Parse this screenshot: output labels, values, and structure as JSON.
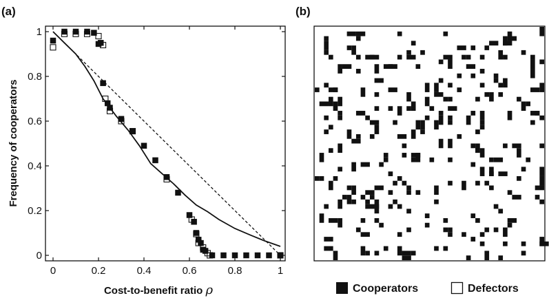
{
  "panel_a_label": "(a)",
  "panel_b_label": "(b)",
  "legend": {
    "cooperators": "Cooperators",
    "defectors": "Defectors"
  },
  "colors": {
    "ink": "#111111",
    "background": "#ffffff"
  },
  "chart_data": {
    "type": "scatter",
    "title": "",
    "xlabel": "Cost-to-benefit ratio",
    "xlabel_symbol": "ρ",
    "ylabel": "Frequency of cooperators",
    "xlim": [
      0,
      1
    ],
    "ylim": [
      0,
      1
    ],
    "xticks": [
      0,
      0.2,
      0.4,
      0.6,
      0.8,
      1
    ],
    "xtick_labels": [
      "0",
      "0.2",
      "0.4",
      "0.6",
      "0.8",
      "1"
    ],
    "yticks": [
      0,
      0.2,
      0.4,
      0.6,
      0.8,
      1
    ],
    "ytick_labels": [
      "0",
      "0.2",
      "0.4",
      "0.6",
      "0.8",
      "1"
    ],
    "grid": false,
    "series": [
      {
        "name": "Cooperators",
        "marker": "filled-square",
        "points": [
          [
            0.0,
            0.96
          ],
          [
            0.05,
            1.0
          ],
          [
            0.1,
            1.0
          ],
          [
            0.15,
            1.0
          ],
          [
            0.18,
            0.995
          ],
          [
            0.2,
            0.945
          ],
          [
            0.21,
            0.95
          ],
          [
            0.22,
            0.77
          ],
          [
            0.24,
            0.68
          ],
          [
            0.25,
            0.66
          ],
          [
            0.3,
            0.61
          ],
          [
            0.35,
            0.555
          ],
          [
            0.4,
            0.49
          ],
          [
            0.45,
            0.425
          ],
          [
            0.5,
            0.35
          ],
          [
            0.55,
            0.28
          ],
          [
            0.6,
            0.18
          ],
          [
            0.62,
            0.15
          ],
          [
            0.63,
            0.1
          ],
          [
            0.64,
            0.07
          ],
          [
            0.65,
            0.055
          ],
          [
            0.66,
            0.025
          ],
          [
            0.67,
            0.02
          ],
          [
            0.7,
            0.0
          ],
          [
            0.75,
            0.0
          ],
          [
            0.8,
            0.0
          ],
          [
            0.85,
            0.0
          ],
          [
            0.9,
            0.0
          ],
          [
            0.95,
            0.0
          ],
          [
            1.0,
            0.0
          ]
        ]
      },
      {
        "name": "Defectors",
        "marker": "open-square",
        "points": [
          [
            0.0,
            0.93
          ],
          [
            0.05,
            0.99
          ],
          [
            0.1,
            0.99
          ],
          [
            0.15,
            0.99
          ],
          [
            0.2,
            0.98
          ],
          [
            0.22,
            0.94
          ],
          [
            0.23,
            0.7
          ],
          [
            0.25,
            0.645
          ],
          [
            0.3,
            0.6
          ],
          [
            0.35,
            0.555
          ],
          [
            0.5,
            0.34
          ],
          [
            0.61,
            0.16
          ],
          [
            0.63,
            0.095
          ],
          [
            0.64,
            0.055
          ],
          [
            0.66,
            0.035
          ],
          [
            0.68,
            0.01
          ],
          [
            0.69,
            0.0
          ],
          [
            1.0,
            0.0
          ]
        ]
      },
      {
        "style": "solid-line",
        "points": [
          [
            0.0,
            1.0
          ],
          [
            0.05,
            0.95
          ],
          [
            0.1,
            0.9
          ],
          [
            0.14,
            0.845
          ],
          [
            0.18,
            0.78
          ],
          [
            0.22,
            0.7
          ],
          [
            0.28,
            0.62
          ],
          [
            0.33,
            0.56
          ],
          [
            0.38,
            0.49
          ],
          [
            0.43,
            0.41
          ],
          [
            0.48,
            0.365
          ],
          [
            0.53,
            0.32
          ],
          [
            0.58,
            0.27
          ],
          [
            0.63,
            0.225
          ],
          [
            0.68,
            0.195
          ],
          [
            0.73,
            0.16
          ],
          [
            0.8,
            0.12
          ],
          [
            0.87,
            0.09
          ],
          [
            0.93,
            0.065
          ],
          [
            1.0,
            0.04
          ]
        ]
      },
      {
        "style": "dashed-line",
        "points": [
          [
            0.0,
            1.0
          ],
          [
            1.0,
            0.0
          ]
        ]
      }
    ]
  },
  "lattice": {
    "rows": 50,
    "cols": 50,
    "cooperator_fraction": 0.1,
    "seed": 12345
  }
}
